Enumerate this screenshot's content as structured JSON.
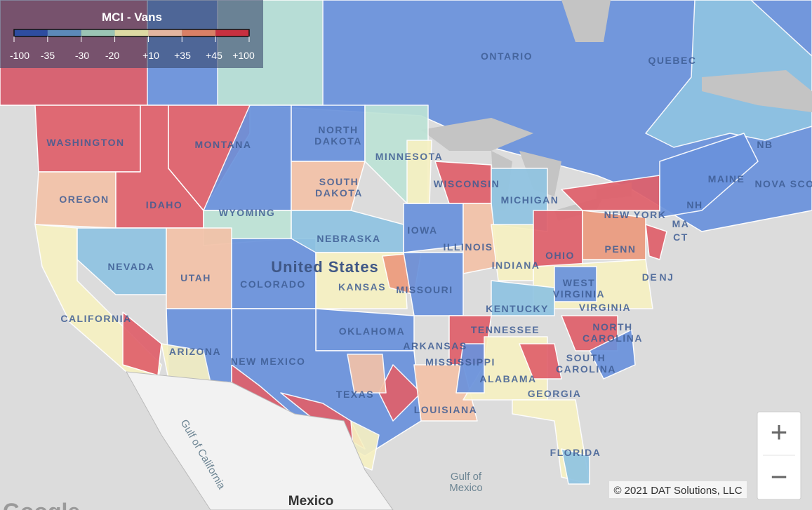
{
  "legend": {
    "title": "MCI - Vans",
    "colors": [
      "#2e4da0",
      "#5c89b9",
      "#9bc4b4",
      "#ded9a3",
      "#e2b5a0",
      "#d98066",
      "#c73040"
    ],
    "ticks": [
      "-100",
      "-35",
      "-30",
      "-20",
      "+10",
      "+35",
      "+45",
      "+100"
    ]
  },
  "places": [
    "ONTARIO",
    "QUEBEC",
    [
      "NORTH",
      "DAKOTA"
    ],
    "MINNESOTA",
    "MONTANA",
    "WASHINGTON",
    "OREGON",
    "IDAHO",
    "WYOMING",
    [
      "SOUTH",
      "DAKOTA"
    ],
    "NEBRASKA",
    "IOWA",
    "WISCONSIN",
    "MICHIGAN",
    "ILLINOIS",
    "INDIANA",
    "OHIO",
    "PENN",
    "NEW YORK",
    "MAINE",
    "NB",
    "NOVA SCO",
    "NH",
    "MA",
    "CT",
    "DE",
    "NJ",
    [
      "WEST",
      "VIRGINIA"
    ],
    "VIRGINIA",
    "KENTUCKY",
    "TENNESSEE",
    [
      "NORTH",
      "CAROLINA"
    ],
    [
      "SOUTH",
      "CAROLINA"
    ],
    "GEORGIA",
    "ALABAMA",
    "MISSISSIPPI",
    "ARKANSAS",
    "LOUISIANA",
    "MISSOURI",
    "KANSAS",
    "OKLAHOMA",
    "TEXAS",
    "NEW MEXICO",
    "ARIZONA",
    "COLORADO",
    "UTAH",
    "NEVADA",
    "CALIFORNIA",
    "FLORIDA"
  ],
  "country_labels": [
    "United States",
    "Mexico"
  ],
  "water_labels": [
    [
      "Gulf of",
      "Mexico"
    ],
    "Gulf of California"
  ],
  "zoom": {
    "in": "+",
    "out": "−"
  },
  "copyright": "© 2021 DAT Solutions, LLC",
  "logo": "Google"
}
